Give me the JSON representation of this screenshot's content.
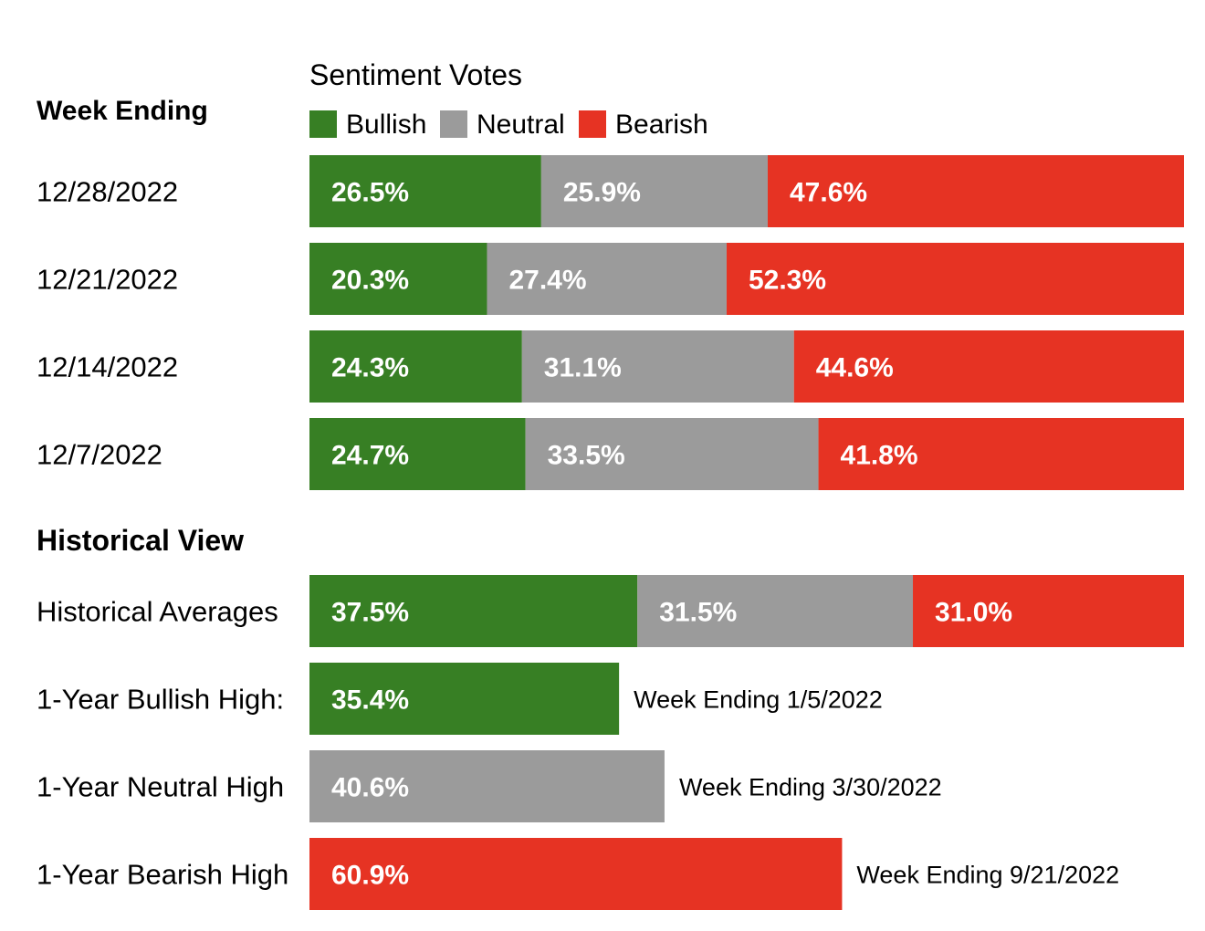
{
  "chart_data": {
    "type": "bar",
    "subtype": "stacked-horizontal-100",
    "title": "Sentiment Votes",
    "colors": {
      "bullish": "#377f24",
      "neutral": "#9b9b9b",
      "bearish": "#e63323"
    },
    "legend": {
      "placement": "top",
      "entries": [
        {
          "key": "bullish",
          "label": "Bullish"
        },
        {
          "key": "neutral",
          "label": "Neutral"
        },
        {
          "key": "bearish",
          "label": "Bearish"
        }
      ]
    },
    "weekly": {
      "heading": "Week Ending",
      "rows": [
        {
          "label": "12/28/2022",
          "bullish": 26.5,
          "neutral": 25.9,
          "bearish": 47.6,
          "bullish_text": "26.5%",
          "neutral_text": "25.9%",
          "bearish_text": "47.6%"
        },
        {
          "label": "12/21/2022",
          "bullish": 20.3,
          "neutral": 27.4,
          "bearish": 52.3,
          "bullish_text": "20.3%",
          "neutral_text": "27.4%",
          "bearish_text": "52.3%"
        },
        {
          "label": "12/14/2022",
          "bullish": 24.3,
          "neutral": 31.1,
          "bearish": 44.6,
          "bullish_text": "24.3%",
          "neutral_text": "31.1%",
          "bearish_text": "44.6%"
        },
        {
          "label": "12/7/2022",
          "bullish": 24.7,
          "neutral": 33.5,
          "bearish": 41.8,
          "bullish_text": "24.7%",
          "neutral_text": "33.5%",
          "bearish_text": "41.8%"
        }
      ]
    },
    "historical": {
      "heading": "Historical View",
      "averages": {
        "label": "Historical Averages",
        "bullish": 37.5,
        "neutral": 31.5,
        "bearish": 31.0,
        "bullish_text": "37.5%",
        "neutral_text": "31.5%",
        "bearish_text": "31.0%"
      },
      "highs": [
        {
          "label": "1-Year Bullish High:",
          "key": "bullish",
          "value": 35.4,
          "value_text": "35.4%",
          "note": "Week Ending 1/5/2022"
        },
        {
          "label": "1-Year Neutral High",
          "key": "neutral",
          "value": 40.6,
          "value_text": "40.6%",
          "note": "Week Ending 3/30/2022"
        },
        {
          "label": "1-Year Bearish High",
          "key": "bearish",
          "value": 60.9,
          "value_text": "60.9%",
          "note": "Week Ending 9/21/2022"
        }
      ]
    }
  }
}
